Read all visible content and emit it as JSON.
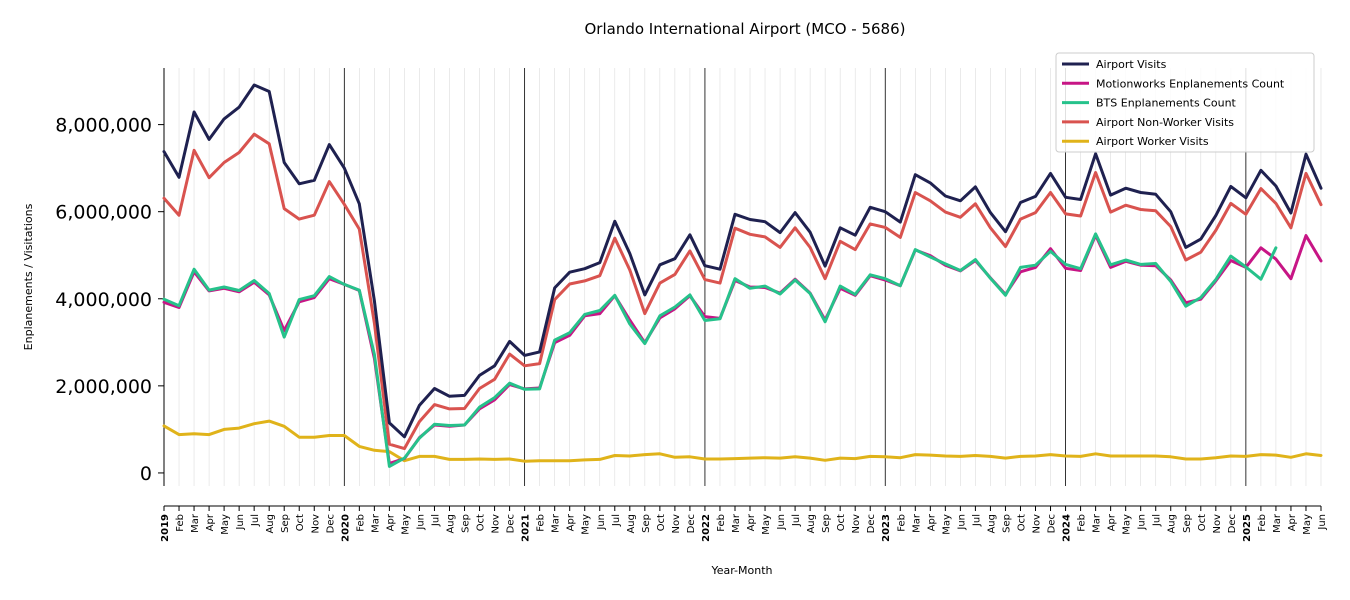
{
  "chart_data": {
    "type": "line",
    "title": "Orlando International Airport (MCO - 5686)",
    "xlabel": "Year-Month",
    "ylabel": "Enplanements / Visitations",
    "ylim": [
      -300000,
      9300000
    ],
    "yticks": [
      0,
      2000000,
      4000000,
      6000000,
      8000000
    ],
    "ytick_labels": [
      "0",
      "2,000,000",
      "4,000,000",
      "6,000,000",
      "8,000,000"
    ],
    "x": [
      "2019",
      "Feb",
      "Mar",
      "Apr",
      "May",
      "Jun",
      "Jul",
      "Aug",
      "Sep",
      "Oct",
      "Nov",
      "Dec",
      "2020",
      "Feb",
      "Mar",
      "Apr",
      "May",
      "Jun",
      "Jul",
      "Aug",
      "Sep",
      "Oct",
      "Nov",
      "Dec",
      "2021",
      "Feb",
      "Mar",
      "Apr",
      "May",
      "Jun",
      "Jul",
      "Aug",
      "Sep",
      "Oct",
      "Nov",
      "Dec",
      "2022",
      "Feb",
      "Mar",
      "Apr",
      "May",
      "Jun",
      "Jul",
      "Aug",
      "Sep",
      "Oct",
      "Nov",
      "Dec",
      "2023",
      "Feb",
      "Mar",
      "Apr",
      "May",
      "Jun",
      "Jul",
      "Aug",
      "Sep",
      "Oct",
      "Nov",
      "Dec",
      "2024",
      "Feb",
      "Mar",
      "Apr",
      "May",
      "Jun",
      "Jul",
      "Aug",
      "Sep",
      "Oct",
      "Nov",
      "Dec",
      "2025",
      "Feb",
      "Mar",
      "Apr",
      "May",
      "Jun"
    ],
    "year_labels": [
      "2019",
      "2020",
      "2021",
      "2022",
      "2023",
      "2024",
      "2025"
    ],
    "legend_position": "top-right",
    "grid": "vertical monthly, darker at year boundaries",
    "series": [
      {
        "name": "Airport Visits",
        "color": "#1f2150",
        "values": [
          7380000,
          6790000,
          8290000,
          7660000,
          8130000,
          8400000,
          8910000,
          8760000,
          7130000,
          6640000,
          6720000,
          7540000,
          7000000,
          6180000,
          3950000,
          1150000,
          830000,
          1550000,
          1940000,
          1760000,
          1780000,
          2240000,
          2460000,
          3020000,
          2700000,
          2780000,
          4250000,
          4610000,
          4690000,
          4830000,
          5780000,
          5040000,
          4090000,
          4780000,
          4920000,
          5470000,
          4760000,
          4680000,
          5940000,
          5820000,
          5770000,
          5520000,
          5980000,
          5530000,
          4750000,
          5630000,
          5460000,
          6100000,
          6000000,
          5760000,
          6850000,
          6660000,
          6360000,
          6250000,
          6570000,
          5980000,
          5540000,
          6210000,
          6350000,
          6880000,
          6330000,
          6280000,
          7330000,
          6380000,
          6540000,
          6440000,
          6400000,
          6000000,
          5180000,
          5370000,
          5910000,
          6580000,
          6320000,
          6950000,
          6590000,
          5970000,
          7320000,
          6540000
        ]
      },
      {
        "name": "Motionworks Enplanements Count",
        "color": "#c71585",
        "values": [
          3920000,
          3800000,
          4620000,
          4180000,
          4240000,
          4160000,
          4380000,
          4090000,
          3270000,
          3930000,
          4030000,
          4460000,
          4330000,
          4190000,
          2630000,
          220000,
          330000,
          810000,
          1100000,
          1070000,
          1100000,
          1470000,
          1680000,
          2030000,
          1930000,
          1950000,
          2990000,
          3160000,
          3610000,
          3660000,
          4070000,
          3510000,
          2990000,
          3560000,
          3770000,
          4070000,
          3590000,
          3550000,
          4420000,
          4270000,
          4260000,
          4130000,
          4450000,
          4130000,
          3510000,
          4240000,
          4080000,
          4530000,
          4430000,
          4300000,
          5120000,
          4990000,
          4770000,
          4640000,
          4880000,
          4480000,
          4100000,
          4620000,
          4720000,
          5150000,
          4700000,
          4650000,
          5460000,
          4720000,
          4860000,
          4770000,
          4760000,
          4430000,
          3910000,
          3990000,
          4410000,
          4880000,
          4720000,
          5170000,
          4910000,
          4460000,
          5450000,
          4870000
        ]
      },
      {
        "name": "BTS Enplanements Count",
        "color": "#26c28b",
        "values": [
          3990000,
          3840000,
          4680000,
          4200000,
          4270000,
          4190000,
          4420000,
          4120000,
          3120000,
          3980000,
          4070000,
          4510000,
          4330000,
          4200000,
          2720000,
          150000,
          340000,
          800000,
          1120000,
          1090000,
          1100000,
          1510000,
          1730000,
          2060000,
          1920000,
          1930000,
          3050000,
          3220000,
          3640000,
          3730000,
          4080000,
          3420000,
          2970000,
          3610000,
          3810000,
          4090000,
          3500000,
          3540000,
          4460000,
          4240000,
          4290000,
          4110000,
          4430000,
          4120000,
          3470000,
          4290000,
          4100000,
          4550000,
          4460000,
          4300000,
          5130000,
          4960000,
          4800000,
          4650000,
          4900000,
          4470000,
          4080000,
          4720000,
          4770000,
          5090000,
          4790000,
          4690000,
          5490000,
          4780000,
          4890000,
          4790000,
          4810000,
          4400000,
          3830000,
          4030000,
          4440000,
          4980000,
          4730000,
          4450000,
          5170000,
          null,
          null,
          null
        ]
      },
      {
        "name": "Airport Non-Worker Visits",
        "color": "#d9534f",
        "values": [
          6310000,
          5920000,
          7410000,
          6780000,
          7130000,
          7360000,
          7780000,
          7560000,
          6070000,
          5830000,
          5920000,
          6690000,
          6170000,
          5600000,
          3440000,
          660000,
          560000,
          1180000,
          1570000,
          1470000,
          1480000,
          1940000,
          2150000,
          2730000,
          2460000,
          2510000,
          3980000,
          4340000,
          4410000,
          4530000,
          5390000,
          4660000,
          3660000,
          4360000,
          4560000,
          5100000,
          4440000,
          4360000,
          5620000,
          5480000,
          5420000,
          5180000,
          5630000,
          5180000,
          4460000,
          5320000,
          5130000,
          5720000,
          5640000,
          5410000,
          6440000,
          6250000,
          5990000,
          5870000,
          6180000,
          5630000,
          5200000,
          5830000,
          5980000,
          6440000,
          5950000,
          5900000,
          6900000,
          5990000,
          6150000,
          6050000,
          6020000,
          5660000,
          4890000,
          5070000,
          5570000,
          6190000,
          5940000,
          6530000,
          6190000,
          5630000,
          6880000,
          6160000
        ]
      },
      {
        "name": "Airport Worker Visits",
        "color": "#e0b31a",
        "values": [
          1080000,
          880000,
          900000,
          880000,
          1000000,
          1030000,
          1130000,
          1190000,
          1070000,
          820000,
          820000,
          860000,
          860000,
          610000,
          520000,
          490000,
          280000,
          380000,
          380000,
          310000,
          310000,
          320000,
          310000,
          320000,
          270000,
          280000,
          280000,
          280000,
          300000,
          310000,
          400000,
          390000,
          420000,
          440000,
          360000,
          370000,
          320000,
          320000,
          330000,
          340000,
          350000,
          340000,
          370000,
          340000,
          290000,
          340000,
          330000,
          380000,
          370000,
          350000,
          420000,
          410000,
          390000,
          380000,
          400000,
          380000,
          340000,
          380000,
          390000,
          420000,
          390000,
          380000,
          440000,
          390000,
          390000,
          390000,
          390000,
          370000,
          320000,
          320000,
          350000,
          390000,
          380000,
          420000,
          410000,
          360000,
          440000,
          400000
        ]
      }
    ]
  }
}
